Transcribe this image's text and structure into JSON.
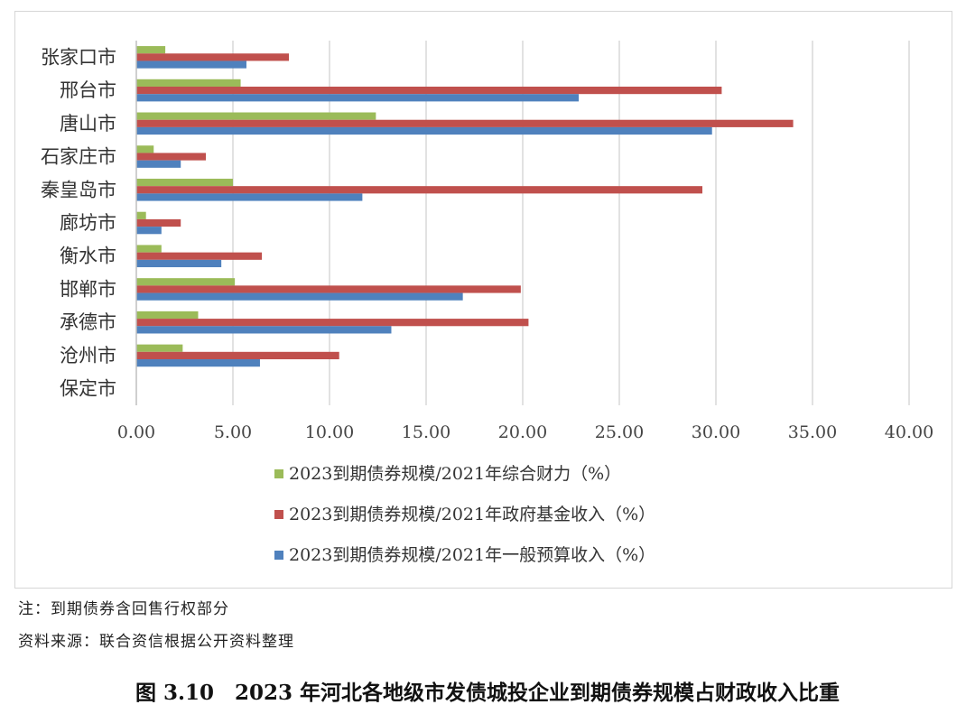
{
  "chart_data": {
    "type": "bar",
    "orientation": "horizontal",
    "categories": [
      "张家口市",
      "邢台市",
      "唐山市",
      "石家庄市",
      "秦皇岛市",
      "廊坊市",
      "衡水市",
      "邯郸市",
      "承德市",
      "沧州市",
      "保定市"
    ],
    "series": [
      {
        "name": "2023到期债券规模/2021年综合财力（%）",
        "color": "#9bbb59",
        "values": [
          1.5,
          5.4,
          12.4,
          0.9,
          5.0,
          0.5,
          1.3,
          5.1,
          3.2,
          2.4,
          0
        ]
      },
      {
        "name": "2023到期债券规模/2021年政府基金收入（%）",
        "color": "#c0504d",
        "values": [
          7.9,
          30.3,
          34.0,
          3.6,
          29.3,
          2.3,
          6.5,
          19.9,
          20.3,
          10.5,
          0
        ]
      },
      {
        "name": "2023到期债券规模/2021年一般预算收入（%）",
        "color": "#4f81bd",
        "values": [
          5.7,
          22.9,
          29.8,
          2.3,
          11.7,
          1.3,
          4.4,
          16.9,
          13.2,
          6.4,
          0
        ]
      }
    ],
    "xticks": [
      "0.00",
      "5.00",
      "10.00",
      "15.00",
      "20.00",
      "25.00",
      "30.00",
      "35.00",
      "40.00"
    ],
    "xlim": [
      0,
      40
    ],
    "grid": "vertical",
    "legend_position": "bottom"
  },
  "notes": {
    "note": "注：到期债券含回售行权部分",
    "source": "资料来源：联合资信根据公开资料整理"
  },
  "caption": "图 3.10　2023 年河北各地级市发债城投企业到期债券规模占财政收入比重"
}
